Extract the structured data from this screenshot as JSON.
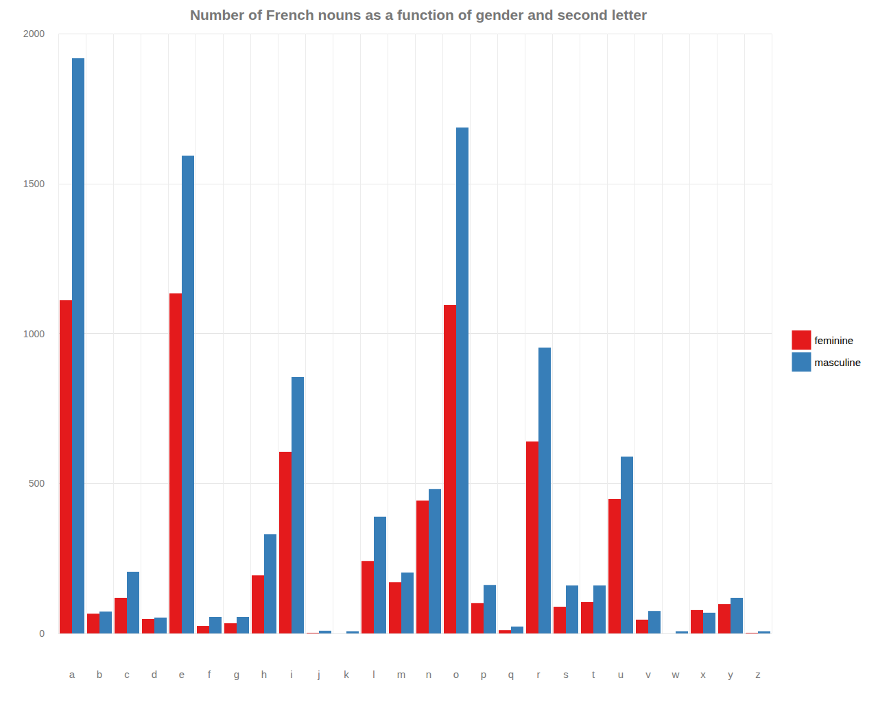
{
  "chart_data": {
    "type": "bar",
    "title": "Number of French nouns as a function of gender and second letter",
    "categories": [
      "a",
      "b",
      "c",
      "d",
      "e",
      "f",
      "g",
      "h",
      "i",
      "j",
      "k",
      "l",
      "m",
      "n",
      "o",
      "p",
      "q",
      "r",
      "s",
      "t",
      "u",
      "v",
      "w",
      "x",
      "y",
      "z"
    ],
    "series": [
      {
        "name": "feminine",
        "color": "#e41a1c",
        "values": [
          1111,
          66,
          119,
          48,
          1134,
          25,
          34,
          194,
          606,
          2,
          0,
          242,
          171,
          443,
          1095,
          101,
          11,
          640,
          89,
          105,
          448,
          46,
          0,
          78,
          98,
          2
        ]
      },
      {
        "name": "masculine",
        "color": "#377eb8",
        "values": [
          1918,
          73,
          206,
          53,
          1593,
          55,
          55,
          331,
          855,
          9,
          7,
          389,
          203,
          482,
          1687,
          162,
          23,
          953,
          160,
          160,
          590,
          75,
          7,
          69,
          119,
          7
        ]
      }
    ],
    "ylim": [
      0,
      2000
    ],
    "yticks": [
      0,
      500,
      1000,
      1500,
      2000
    ],
    "grid": true,
    "legend": "right"
  }
}
